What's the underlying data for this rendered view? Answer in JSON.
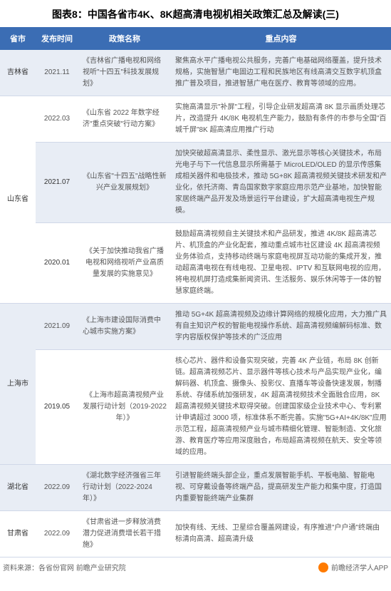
{
  "title": "图表8：中国各省市4K、8K超高清电视机相关政策汇总及解读(三)",
  "headers": [
    "省市",
    "发布时间",
    "政策名称",
    "重点内容"
  ],
  "rows": [
    {
      "province": "吉林省",
      "date": "2021.11",
      "policy": "《吉林省广播电视和网络视听\"十四五\"科技发展规划》",
      "content": "聚焦高水平广播电视公共服务，完善广电基础网络覆盖，提升技术规格，实施智慧广电固边工程和民族地区有线高清交互数字机顶盒推广普及项目，推进智慧广电在医疗、教育等领域的应用。",
      "rowClass": "even"
    },
    {
      "province": "山东省",
      "provinceRowspan": 3,
      "date": "2022.03",
      "policy": "《山东省 2022 年数字经济\"重点突破\"行动方案》",
      "content": "实施高清显示\"补屏\"工程，引导企业研发超高清 8K 显示画质处理芯片，改造提升 4K/8K 电视机生产能力，鼓励有条件的市参与全国\"百城千屏\"8K 超高清应用推广行动",
      "rowClass": "odd"
    },
    {
      "date": "2021.07",
      "policy": "《山东省\"十四五\"战略性新兴产业发展规划》",
      "content": "加快突破超高清显示、柔性显示、激光显示等核心关键技术，布局光电子与下一代信息显示所需基于 MicroLED/OLED 的显示传感集成相关器件和电极技术，推动 5G+8K 超高清视频关键技术研发和产业化，依托济南、青岛国家数字家庭应用示范产业基地，加快智能家居终端产品开发及场景运行平台建设，扩大超高清电视生产规模。",
      "rowClass": "even"
    },
    {
      "date": "2020.01",
      "policy": "《关于加快推动我省广播电视和网络视听产业高质量发展的实施意见》",
      "content": "鼓励超高清视频自主关键技术和产品研发，推进 4K/8K 超高清芯片、机顶盒的产业化配套，推动重点城市社区建设 4K 超高清视频业务体验点，支持移动终端与家庭电视屏互动功能的集成开发，推动超高清电视在有线电视、卫星电视、IPTV 和互联网电视的应用，将电视机屏打造成集新闻资讯、生活服务、娱乐休闲等于一体的智慧家庭终端。",
      "rowClass": "odd"
    },
    {
      "province": "上海市",
      "provinceRowspan": 2,
      "date": "2021.09",
      "policy": "《上海市建设国际消费中心城市实施方案》",
      "content": "推动 5G+4K 超高清视频及边缘计算网络的规模化应用，大力推广具有自主知识产权的智能电视操作系统、超高清视频编解码标准、数字内容版权保护等技术的广泛应用",
      "rowClass": "even"
    },
    {
      "date": "2019.05",
      "policy": "《上海市超高清视频产业发展行动计划（2019-2022 年）》",
      "content": "核心芯片、器件和设备实现突破，完善 4K 产业链，布局 8K 创新链。超高清视频芯片、显示器件等核心技术与产品实现产业化，编解码器、机顶盒、摄像头、投影仪、直播车等设备快速发展，制播系统、存储系统加强研发，4K 超高清视频技术全面融合应用，8K 超高清视频关键技术取得突破。创建国家级企业技术中心、专利累计申请超过 3000 项，标准体系不断完善。实施\"5G+AI+4K/8K\"应用示范工程，超高清视频产业与城市精细化管理、智能制造、文化旅游、教育医疗等应用深度融合，布局超高清视频在航天、安全等领域的应用。",
      "rowClass": "odd"
    },
    {
      "province": "湖北省",
      "date": "2022.09",
      "policy": "《湖北数字经济强省三年行动计划（2022-2024 年）》",
      "content": "引进智能终端头部企业，重点发展智能手机、平板电脑、智能电视、可穿戴设备等终端产品，提高研发生产能力和集中度，打造国内重要智能终端产业集群",
      "rowClass": "even"
    },
    {
      "province": "甘肃省",
      "date": "2022.09",
      "policy": "《甘肃省进一步释放消费潜力促进消费增长若干措施》",
      "content": "加快有线、无线、卫星综合覆盖网建设，有序推进\"户户通\"终端由标清向高清、超高清升级",
      "rowClass": "odd"
    }
  ],
  "footer": {
    "source": "资料来源：各省份官网 前瞻产业研究院",
    "brand": "前瞻经济学人APP"
  },
  "colors": {
    "header_bg": "#3b6db4",
    "header_text": "#ffffff",
    "even_row_bg": "#e8edf5",
    "odd_row_bg": "#ffffff",
    "border": "#d0d8e8",
    "logo": "#ff7b00"
  }
}
